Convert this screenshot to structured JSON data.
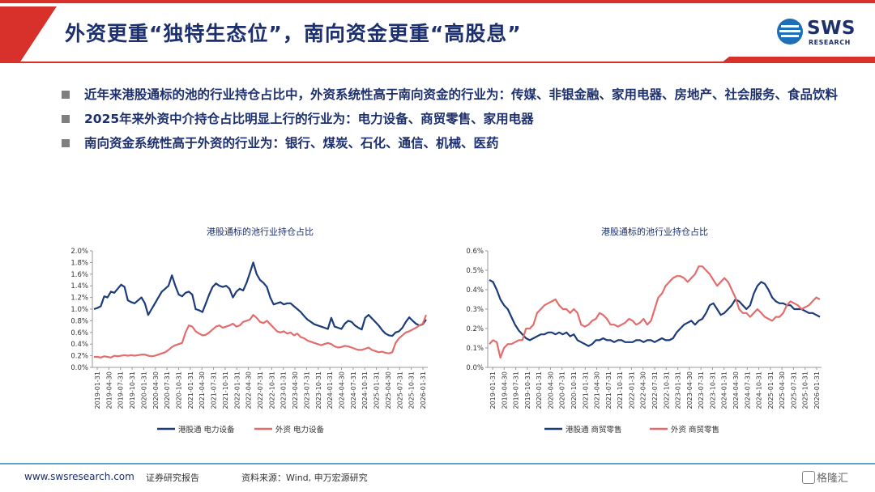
{
  "header": {
    "title": "外资更重“独特生态位”，南向资金更重“高股息”",
    "logo_text": "SWS",
    "logo_sub": "RESEARCH",
    "colors": {
      "red": "#d8302b",
      "navy": "#1c2f6e"
    }
  },
  "bullets": [
    "近年来港股通标的池的行业持仓占比中，外资系统性高于南向资金的行业为：传媒、非银金融、家用电器、房地产、社会服务、食品饮料",
    "2025年来外资中介持仓占比明显上行的行业为：电力设备、商贸零售、家用电器",
    "南向资金系统性高于外资的行业为：银行、煤炭、石化、通信、机械、医药"
  ],
  "chart_data": [
    {
      "type": "line",
      "title": "港股通标的池行业持仓占比",
      "ylim": [
        0,
        2.0
      ],
      "yticks": [
        "0.0%",
        "0.2%",
        "0.4%",
        "0.6%",
        "0.8%",
        "1.0%",
        "1.2%",
        "1.4%",
        "1.6%",
        "1.8%",
        "2.0%"
      ],
      "xticks": [
        "2019-01-31",
        "2019-04-30",
        "2019-07-31",
        "2019-10-31",
        "2020-01-31",
        "2020-04-30",
        "2020-07-31",
        "2020-10-31",
        "2021-01-31",
        "2021-04-30",
        "2021-07-31",
        "2021-10-31",
        "2022-01-31",
        "2022-04-30",
        "2022-07-31",
        "2022-10-31",
        "2023-01-31",
        "2023-04-30",
        "2023-07-31",
        "2023-10-31",
        "2024-01-31",
        "2024-04-30",
        "2024-07-31",
        "2024-10-31",
        "2025-01-31",
        "2025-04-30",
        "2025-07-31",
        "2025-10-31",
        "2026-01-31"
      ],
      "legend_position": "bottom",
      "series": [
        {
          "name": "港股通 电力设备",
          "color": "#1c3b7a",
          "values": [
            1.0,
            1.02,
            1.05,
            1.22,
            1.2,
            1.3,
            1.28,
            1.35,
            1.42,
            1.38,
            1.15,
            1.12,
            1.1,
            1.15,
            1.2,
            1.1,
            0.9,
            1.0,
            1.1,
            1.2,
            1.3,
            1.35,
            1.4,
            1.58,
            1.4,
            1.25,
            1.22,
            1.28,
            1.3,
            1.25,
            1.0,
            0.98,
            0.95,
            1.1,
            1.25,
            1.38,
            1.44,
            1.4,
            1.38,
            1.4,
            1.35,
            1.2,
            1.3,
            1.35,
            1.32,
            1.45,
            1.62,
            1.8,
            1.6,
            1.5,
            1.45,
            1.38,
            1.2,
            1.08,
            1.1,
            1.12,
            1.08,
            1.1,
            1.1,
            1.05,
            1.0,
            0.95,
            0.88,
            0.82,
            0.78,
            0.74,
            0.72,
            0.7,
            0.68,
            0.66,
            0.85,
            0.7,
            0.68,
            0.66,
            0.75,
            0.8,
            0.78,
            0.72,
            0.68,
            0.65,
            0.85,
            0.9,
            0.84,
            0.78,
            0.72,
            0.64,
            0.58,
            0.55,
            0.54,
            0.6,
            0.62,
            0.68,
            0.78,
            0.86,
            0.8,
            0.75,
            0.72,
            0.74,
            0.82
          ]
        },
        {
          "name": "外资 电力设备",
          "color": "#e36c6c",
          "values": [
            0.18,
            0.18,
            0.17,
            0.19,
            0.18,
            0.17,
            0.2,
            0.19,
            0.2,
            0.21,
            0.2,
            0.21,
            0.2,
            0.21,
            0.22,
            0.22,
            0.2,
            0.19,
            0.2,
            0.22,
            0.24,
            0.26,
            0.3,
            0.35,
            0.38,
            0.4,
            0.42,
            0.6,
            0.72,
            0.7,
            0.62,
            0.58,
            0.55,
            0.56,
            0.6,
            0.65,
            0.7,
            0.72,
            0.68,
            0.7,
            0.72,
            0.75,
            0.7,
            0.72,
            0.78,
            0.8,
            0.82,
            0.9,
            0.85,
            0.78,
            0.76,
            0.8,
            0.74,
            0.68,
            0.62,
            0.6,
            0.62,
            0.58,
            0.6,
            0.55,
            0.58,
            0.52,
            0.5,
            0.46,
            0.44,
            0.42,
            0.4,
            0.38,
            0.4,
            0.42,
            0.4,
            0.36,
            0.34,
            0.35,
            0.37,
            0.36,
            0.34,
            0.32,
            0.3,
            0.3,
            0.32,
            0.34,
            0.3,
            0.28,
            0.26,
            0.27,
            0.25,
            0.24,
            0.26,
            0.42,
            0.5,
            0.55,
            0.6,
            0.62,
            0.65,
            0.68,
            0.72,
            0.75,
            0.9
          ]
        }
      ]
    },
    {
      "type": "line",
      "title": "港股通标的池行业持仓占比",
      "ylim": [
        0,
        0.6
      ],
      "yticks": [
        "0.0%",
        "0.1%",
        "0.2%",
        "0.3%",
        "0.4%",
        "0.5%",
        "0.6%"
      ],
      "xticks": [
        "2019-01-31",
        "2019-04-30",
        "2019-07-31",
        "2019-10-31",
        "2020-01-31",
        "2020-04-30",
        "2020-07-31",
        "2020-10-31",
        "2021-01-31",
        "2021-04-30",
        "2021-07-31",
        "2021-10-31",
        "2022-01-31",
        "2022-04-30",
        "2022-07-31",
        "2022-10-31",
        "2023-01-31",
        "2023-04-30",
        "2023-07-31",
        "2023-10-31",
        "2024-01-31",
        "2024-04-30",
        "2024-07-31",
        "2024-10-31",
        "2025-01-31",
        "2025-04-30",
        "2025-07-31",
        "2025-10-31",
        "2026-01-31"
      ],
      "legend_position": "bottom",
      "series": [
        {
          "name": "港股通 商贸零售",
          "color": "#1c3b7a",
          "values": [
            0.45,
            0.44,
            0.4,
            0.35,
            0.32,
            0.3,
            0.26,
            0.22,
            0.19,
            0.17,
            0.15,
            0.14,
            0.15,
            0.16,
            0.17,
            0.17,
            0.18,
            0.18,
            0.17,
            0.18,
            0.17,
            0.18,
            0.16,
            0.17,
            0.14,
            0.13,
            0.12,
            0.11,
            0.12,
            0.14,
            0.14,
            0.15,
            0.14,
            0.14,
            0.13,
            0.14,
            0.14,
            0.13,
            0.13,
            0.13,
            0.14,
            0.14,
            0.13,
            0.14,
            0.14,
            0.13,
            0.14,
            0.15,
            0.14,
            0.14,
            0.15,
            0.18,
            0.2,
            0.22,
            0.23,
            0.24,
            0.22,
            0.24,
            0.25,
            0.28,
            0.32,
            0.33,
            0.3,
            0.27,
            0.28,
            0.3,
            0.32,
            0.35,
            0.34,
            0.32,
            0.3,
            0.32,
            0.38,
            0.42,
            0.44,
            0.43,
            0.4,
            0.36,
            0.34,
            0.33,
            0.33,
            0.32,
            0.32,
            0.3,
            0.3,
            0.3,
            0.29,
            0.28,
            0.28,
            0.27,
            0.26
          ]
        },
        {
          "name": "外资 商贸零售",
          "color": "#e36c6c",
          "values": [
            0.12,
            0.14,
            0.13,
            0.05,
            0.1,
            0.12,
            0.12,
            0.13,
            0.14,
            0.14,
            0.2,
            0.2,
            0.22,
            0.28,
            0.3,
            0.32,
            0.33,
            0.34,
            0.35,
            0.32,
            0.3,
            0.3,
            0.28,
            0.3,
            0.28,
            0.22,
            0.21,
            0.22,
            0.24,
            0.25,
            0.28,
            0.27,
            0.25,
            0.22,
            0.22,
            0.21,
            0.22,
            0.23,
            0.25,
            0.24,
            0.22,
            0.23,
            0.25,
            0.22,
            0.24,
            0.3,
            0.36,
            0.38,
            0.42,
            0.44,
            0.46,
            0.47,
            0.47,
            0.46,
            0.44,
            0.46,
            0.48,
            0.52,
            0.52,
            0.5,
            0.48,
            0.45,
            0.42,
            0.44,
            0.46,
            0.44,
            0.4,
            0.36,
            0.3,
            0.28,
            0.28,
            0.26,
            0.28,
            0.3,
            0.28,
            0.26,
            0.25,
            0.24,
            0.26,
            0.26,
            0.28,
            0.32,
            0.34,
            0.33,
            0.32,
            0.3,
            0.31,
            0.32,
            0.34,
            0.36,
            0.35
          ]
        }
      ]
    }
  ],
  "footer": {
    "url": "www.swsresearch.com",
    "doc_type": "证券研究报告",
    "source": "资料来源：Wind, 申万宏源研究",
    "brand": "格隆汇"
  }
}
